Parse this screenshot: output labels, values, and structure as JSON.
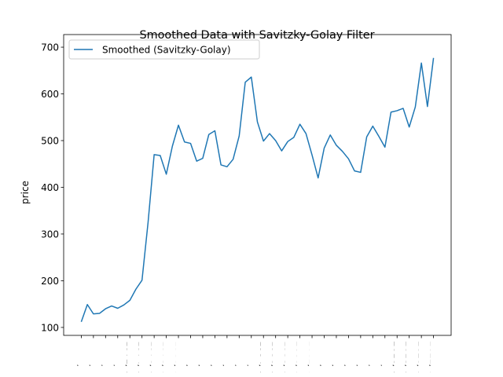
{
  "chart_data": {
    "type": "line",
    "title": "Smoothed Data with Savitzky-Golay Filter",
    "ylabel": "price",
    "categories": [
      "1964/4",
      null,
      "1966/4",
      null,
      "1968/4",
      null,
      "1970/4",
      null,
      "1972/4",
      null,
      "1974/4",
      null,
      "1976/4",
      null,
      "1978/4",
      null,
      "1980/4",
      null,
      "1982/4",
      null,
      "1984/4",
      null,
      "1986/4",
      null,
      "1988/4",
      null,
      "1990/4",
      null,
      "1992/4",
      null,
      "1994/4",
      null,
      "1996/4",
      null,
      "1998/4",
      null,
      "2000/4",
      null,
      "2002/4",
      null,
      "2004/4",
      null,
      "2006/4",
      null,
      "2008/4",
      null,
      "2010/4",
      null,
      "2012/4",
      null,
      "2014/4",
      null,
      "2016/4",
      null,
      "2018/4",
      null,
      "2020/4",
      null,
      "2022/4"
    ],
    "series": [
      {
        "name": "Smoothed (Savitzky-Golay)",
        "color": "#1f77b4",
        "values": [
          112,
          149,
          129,
          130,
          140,
          146,
          141,
          148,
          158,
          182,
          201,
          325,
          470,
          468,
          428,
          488,
          533,
          497,
          494,
          456,
          462,
          513,
          521,
          448,
          444,
          460,
          510,
          625,
          636,
          540,
          499,
          515,
          500,
          478,
          498,
          507,
          535,
          515,
          469,
          420,
          484,
          512,
          490,
          477,
          461,
          435,
          432,
          508,
          531,
          509,
          486,
          561,
          564,
          569,
          529,
          572,
          666,
          573,
          677
        ]
      }
    ],
    "ylim": [
      83,
      727
    ],
    "yticks": [
      100,
      200,
      300,
      400,
      500,
      600,
      700
    ],
    "legend": "upper left"
  }
}
